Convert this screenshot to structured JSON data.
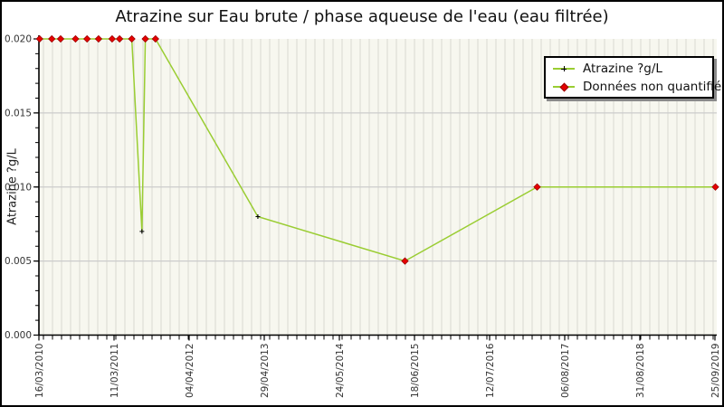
{
  "chart_data": {
    "type": "line",
    "title": "Atrazine sur Eau brute / phase aqueuse de l'eau (eau filtrée)",
    "xlabel": "",
    "ylabel": "Atrazine ?g/L",
    "ylim": [
      0,
      0.02
    ],
    "y_ticks": [
      0.0,
      0.005,
      0.01,
      0.015,
      0.02
    ],
    "y_tick_labels": [
      "0.000",
      "0.005",
      "0.010",
      "0.015",
      "0.020"
    ],
    "y_minor_step": 0.001,
    "x_tick_labels": [
      "16/03/2010",
      "11/03/2011",
      "04/04/2012",
      "29/04/2013",
      "24/05/2014",
      "18/06/2015",
      "12/07/2016",
      "06/08/2017",
      "31/08/2018",
      "25/09/2019"
    ],
    "grid": true,
    "legend_position": "top-right",
    "legend_items": [
      "Atrazine ?g/L",
      "Données non quantifiées"
    ],
    "series": [
      {
        "name": "Atrazine ?g/L",
        "points": [
          {
            "x_frac": 0.001,
            "value": 0.02,
            "quantified": false
          },
          {
            "x_frac": 0.019,
            "value": 0.02,
            "quantified": false
          },
          {
            "x_frac": 0.032,
            "value": 0.02,
            "quantified": false
          },
          {
            "x_frac": 0.054,
            "value": 0.02,
            "quantified": false
          },
          {
            "x_frac": 0.071,
            "value": 0.02,
            "quantified": false
          },
          {
            "x_frac": 0.088,
            "value": 0.02,
            "quantified": false
          },
          {
            "x_frac": 0.108,
            "value": 0.02,
            "quantified": false
          },
          {
            "x_frac": 0.119,
            "value": 0.02,
            "quantified": false
          },
          {
            "x_frac": 0.137,
            "value": 0.02,
            "quantified": false
          },
          {
            "x_frac": 0.152,
            "value": 0.007,
            "quantified": true
          },
          {
            "x_frac": 0.157,
            "value": 0.02,
            "quantified": false
          },
          {
            "x_frac": 0.172,
            "value": 0.02,
            "quantified": false
          },
          {
            "x_frac": 0.323,
            "value": 0.008,
            "quantified": true
          },
          {
            "x_frac": 0.54,
            "value": 0.005,
            "quantified": false
          },
          {
            "x_frac": 0.735,
            "value": 0.01,
            "quantified": false
          },
          {
            "x_frac": 0.998,
            "value": 0.01,
            "quantified": false
          }
        ]
      }
    ],
    "colors": {
      "line": "#9ACD32",
      "non_quantified_marker": "#E60000",
      "non_quantified_edge": "#990000",
      "quantified_marker": "#000000",
      "plot_background": "#F7F7EF",
      "stripe": "#D8D8D0",
      "gridline": "#CCCCCC"
    }
  }
}
